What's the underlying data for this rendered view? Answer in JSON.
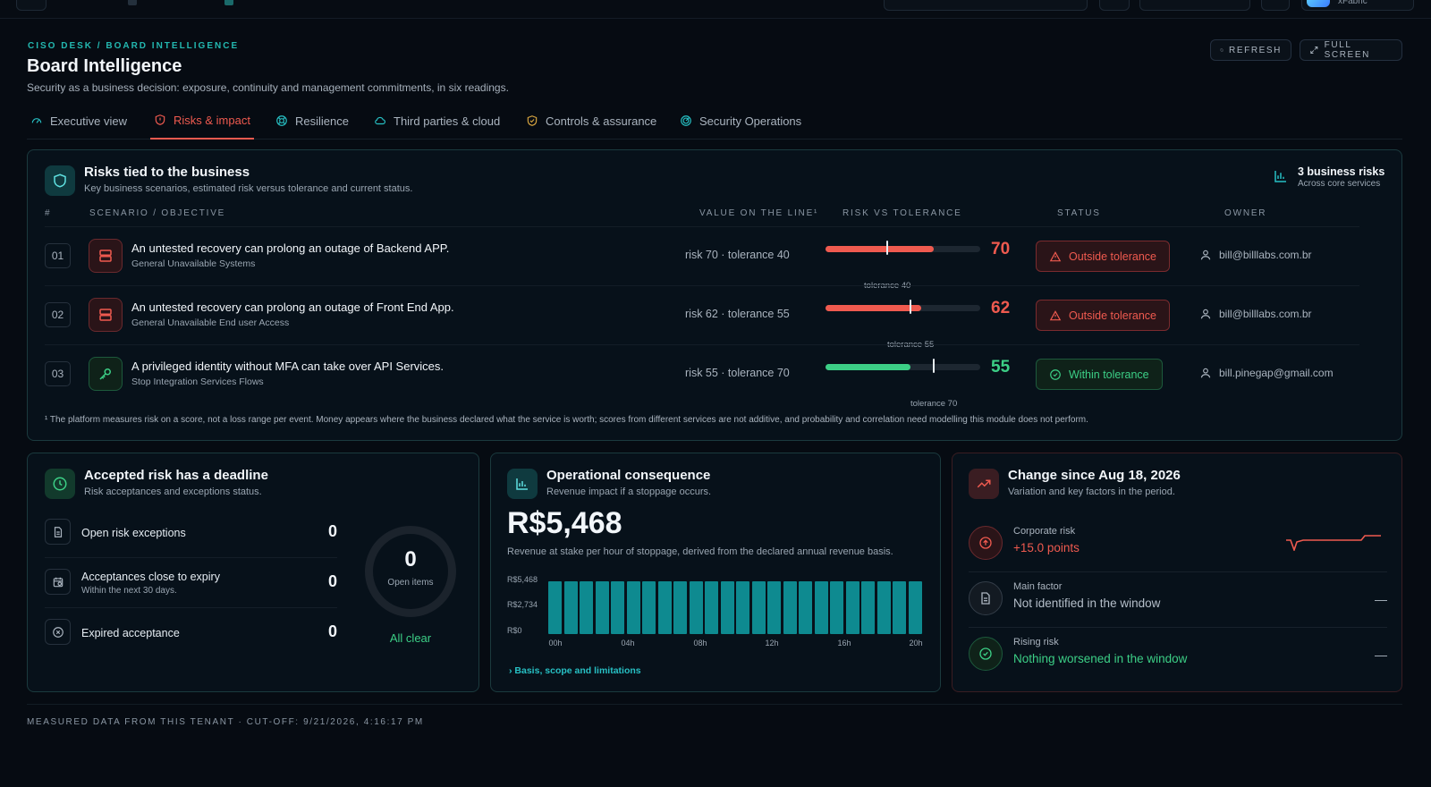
{
  "topbar": {
    "workspace": "xFabric"
  },
  "header": {
    "breadcrumb": "CISO DESK / BOARD INTELLIGENCE",
    "title": "Board Intelligence",
    "subtitle": "Security as a business decision: exposure, continuity and management commitments, in six readings.",
    "refresh_label": "REFRESH",
    "fullscreen_label": "FULL SCREEN"
  },
  "tabs": [
    {
      "label": "Executive view",
      "icon": "gauge-icon"
    },
    {
      "label": "Risks & impact",
      "icon": "shield-alert-icon",
      "active": true
    },
    {
      "label": "Resilience",
      "icon": "lifebuoy-icon"
    },
    {
      "label": "Third parties & cloud",
      "icon": "cloud-icon"
    },
    {
      "label": "Controls & assurance",
      "icon": "shield-check-icon"
    },
    {
      "label": "Security Operations",
      "icon": "radar-icon"
    }
  ],
  "risks": {
    "title": "Risks tied to the business",
    "subtitle": "Key business scenarios, estimated risk versus tolerance and current status.",
    "count_label": "3 business risks",
    "count_sub": "Across core services",
    "columns": [
      "#",
      "SCENARIO / OBJECTIVE",
      "VALUE ON THE LINE¹",
      "RISK VS TOLERANCE",
      "STATUS",
      "OWNER"
    ],
    "rows": [
      {
        "num": "01",
        "title": "An untested recovery can prolong an outage of Backend APP.",
        "sub": "General Unavailable Systems",
        "value": "risk 70 · tolerance 40",
        "risk": 70,
        "tolerance": 40,
        "score": "70",
        "tol_label": "tolerance 40",
        "status": "Outside tolerance",
        "owner": "bill@billlabs.com.br",
        "kind": "outside",
        "icon": "server-icon"
      },
      {
        "num": "02",
        "title": "An untested recovery can prolong an outage of Front End App.",
        "sub": "General Unavailable End user Access",
        "value": "risk 62 · tolerance 55",
        "risk": 62,
        "tolerance": 55,
        "score": "62",
        "tol_label": "tolerance 55",
        "status": "Outside tolerance",
        "owner": "bill@billlabs.com.br",
        "kind": "outside",
        "icon": "server-icon"
      },
      {
        "num": "03",
        "title": "A privileged identity without MFA can take over API Services.",
        "sub": "Stop Integration Services Flows",
        "value": "risk 55 · tolerance 70",
        "risk": 55,
        "tolerance": 70,
        "score": "55",
        "tol_label": "tolerance 70",
        "status": "Within tolerance",
        "owner": "bill.pinegap@gmail.com",
        "kind": "within",
        "icon": "key-icon"
      }
    ],
    "footnote": "¹ The platform measures risk on a score, not a loss range per event. Money appears where the business declared what the service is worth; scores from different services are not additive, and probability and correlation need modelling this module does not perform."
  },
  "accepted": {
    "title": "Accepted risk has a deadline",
    "subtitle": "Risk acceptances and exceptions status.",
    "items": [
      {
        "label": "Open risk exceptions",
        "sub": "",
        "value": "0",
        "icon": "file-icon"
      },
      {
        "label": "Acceptances close to expiry",
        "sub": "Within the next 30 days.",
        "value": "0",
        "icon": "calendar-clock-icon"
      },
      {
        "label": "Expired acceptance",
        "sub": "",
        "value": "0",
        "icon": "x-circle-icon"
      }
    ],
    "ring_value": "0",
    "ring_label": "Open items",
    "status": "All clear"
  },
  "operational": {
    "title": "Operational consequence",
    "subtitle": "Revenue impact if a stoppage occurs.",
    "value": "R$5,468",
    "value_sub": "Revenue at stake per hour of stoppage, derived from the declared annual revenue basis.",
    "basis_link": "Basis, scope and limitations"
  },
  "chart_data": {
    "type": "bar",
    "y_ticks": [
      "R$5,468",
      "R$2,734",
      "R$0"
    ],
    "x_ticks": [
      "00h",
      "04h",
      "08h",
      "12h",
      "16h",
      "20h"
    ],
    "ylim": [
      0,
      5468
    ],
    "categories": [
      "00h",
      "01h",
      "02h",
      "03h",
      "04h",
      "05h",
      "06h",
      "07h",
      "08h",
      "09h",
      "10h",
      "11h",
      "12h",
      "13h",
      "14h",
      "15h",
      "16h",
      "17h",
      "18h",
      "19h",
      "20h",
      "21h",
      "22h",
      "23h"
    ],
    "values": [
      5468,
      5468,
      5468,
      5468,
      5468,
      5468,
      5468,
      5468,
      5468,
      5468,
      5468,
      5468,
      5468,
      5468,
      5468,
      5468,
      5468,
      5468,
      5468,
      5468,
      5468,
      5468,
      5468,
      5468
    ],
    "color": "#0e8a90"
  },
  "change": {
    "title": "Change since Aug 18, 2026",
    "subtitle": "Variation and key factors in the period.",
    "items": [
      {
        "label": "Corporate risk",
        "value": "+15.0 points",
        "dash": "",
        "color": "#ef5a4f"
      },
      {
        "label": "Main factor",
        "value": "Not identified in the window",
        "dash": "—",
        "color": "#b5bfca"
      },
      {
        "label": "Rising risk",
        "value": "Nothing worsened in the window",
        "dash": "—",
        "color": "#3ccf86"
      }
    ]
  },
  "footer": "MEASURED DATA FROM THIS TENANT · CUT-OFF: 9/21/2026, 4:16:17 PM",
  "colors": {
    "accent": "#23b8b0",
    "danger": "#ef5a4f",
    "success": "#3ccf86"
  }
}
